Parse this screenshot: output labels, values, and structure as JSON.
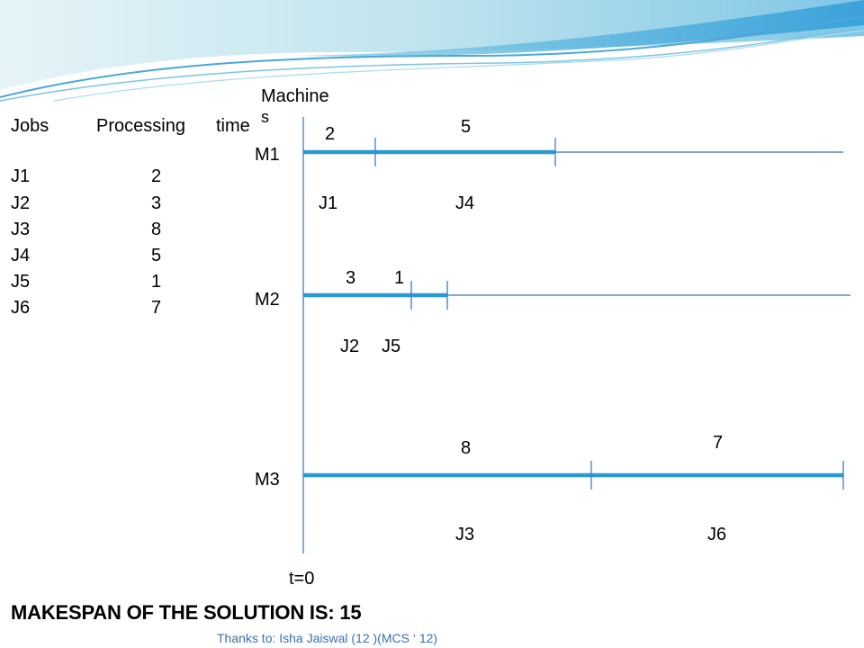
{
  "table": {
    "header_jobs": "Jobs",
    "header_processing": "Processing",
    "header_time": "time",
    "rows": [
      {
        "job": "J1",
        "time": "2"
      },
      {
        "job": "J2",
        "time": "3"
      },
      {
        "job": "J3",
        "time": "8"
      },
      {
        "job": "J4",
        "time": "5"
      },
      {
        "job": "J5",
        "time": "1"
      },
      {
        "job": "J6",
        "time": "7"
      }
    ]
  },
  "machines_header_line1": "Machine",
  "machines_header_line2": "s",
  "origin_label": "t=0",
  "gantt": {
    "accent_color": "#2a9ad6",
    "axis_color": "#3b6fb5",
    "machines": [
      {
        "name": "M1",
        "jobs": [
          {
            "job": "J1",
            "time": "2",
            "duration": 2
          },
          {
            "job": "J4",
            "time": "5",
            "duration": 5
          }
        ]
      },
      {
        "name": "M2",
        "jobs": [
          {
            "job": "J2",
            "time": "3",
            "duration": 3
          },
          {
            "job": "J5",
            "time": "1",
            "duration": 1
          }
        ]
      },
      {
        "name": "M3",
        "jobs": [
          {
            "job": "J3",
            "time": "8",
            "duration": 8
          },
          {
            "job": "J6",
            "time": "7",
            "duration": 7
          }
        ]
      }
    ]
  },
  "makespan_text": "MAKESPAN OF THE SOLUTION IS: 15",
  "credit_text": "Thanks to:  Isha Jaiswal (12 )(MCS ‘ 12)"
}
